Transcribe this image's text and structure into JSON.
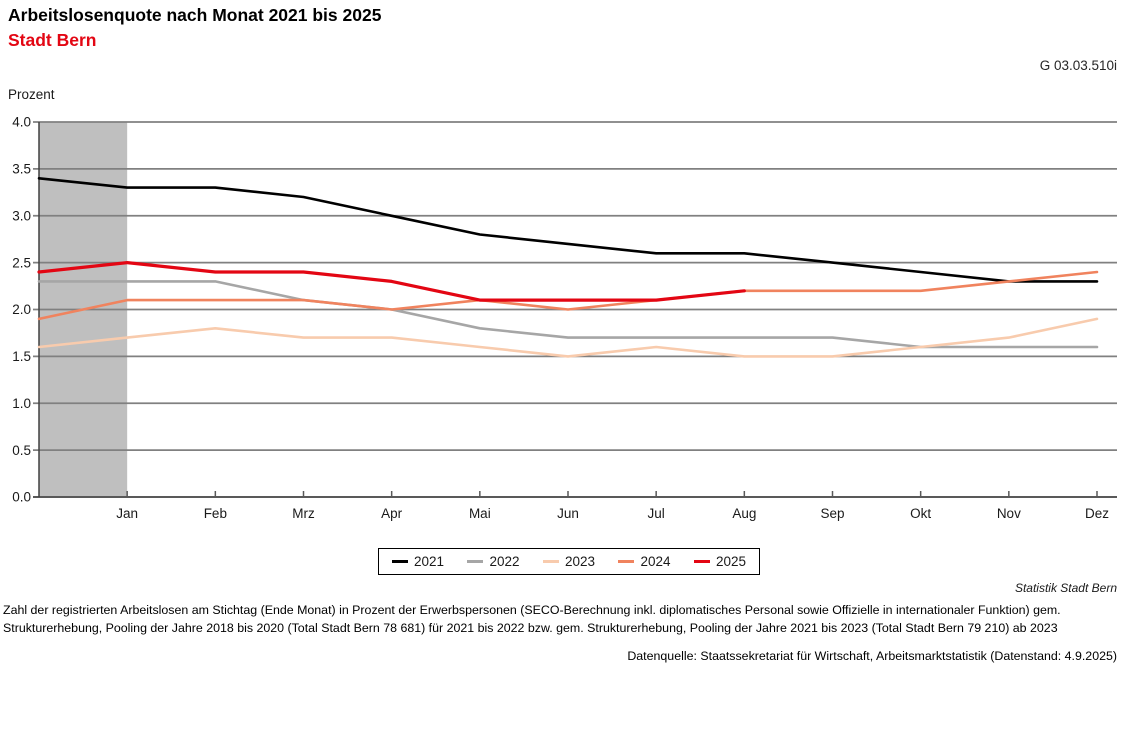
{
  "header": {
    "title": "Arbeitslosenquote nach Monat 2021 bis 2025",
    "subtitle": "Stadt Bern",
    "graphic_id": "G 03.03.510i"
  },
  "chart_data": {
    "type": "line",
    "title": "Arbeitslosenquote nach Monat 2021 bis 2025",
    "subtitle": "Stadt Bern",
    "ylabel": "Prozent",
    "xlabel": "",
    "ylim": [
      0.0,
      4.0
    ],
    "ytick_step": 0.5,
    "grid": true,
    "legend_position": "bottom",
    "x_tick_labels": [
      "Jan",
      "Feb",
      "Mrz",
      "Apr",
      "Mai",
      "Jun",
      "Jul",
      "Aug",
      "Sep",
      "Okt",
      "Nov",
      "Dez"
    ],
    "first_point_note": "Each series begins with the previous December value plotted on the y-axis before Jan",
    "highlight_band": {
      "color": "#BFBFBF",
      "from_month_index": 0,
      "to_month_index": 1
    },
    "series": [
      {
        "name": "2021",
        "color": "#000000",
        "values": [
          3.4,
          3.3,
          3.3,
          3.2,
          3.0,
          2.8,
          2.7,
          2.6,
          2.6,
          2.5,
          2.4,
          2.3,
          2.3
        ]
      },
      {
        "name": "2022",
        "color": "#A6A6A6",
        "values": [
          2.3,
          2.3,
          2.3,
          2.1,
          2.0,
          1.8,
          1.7,
          1.7,
          1.7,
          1.7,
          1.6,
          1.6,
          1.6
        ]
      },
      {
        "name": "2023",
        "color": "#F8CBAD",
        "values": [
          1.6,
          1.7,
          1.8,
          1.7,
          1.7,
          1.6,
          1.5,
          1.6,
          1.5,
          1.5,
          1.6,
          1.7,
          1.9
        ]
      },
      {
        "name": "2024",
        "color": "#F0835E",
        "values": [
          1.9,
          2.1,
          2.1,
          2.1,
          2.0,
          2.1,
          2.0,
          2.1,
          2.2,
          2.2,
          2.2,
          2.3,
          2.4
        ]
      },
      {
        "name": "2025",
        "color": "#E30613",
        "values": [
          2.4,
          2.5,
          2.4,
          2.4,
          2.3,
          2.1,
          2.1,
          2.1,
          2.2
        ]
      }
    ],
    "colors": {
      "gridline": "#808080",
      "x_axis": "#595959",
      "y_axis": "#404040",
      "band": "#BFBFBF"
    }
  },
  "footer": {
    "attribution": "Statistik Stadt Bern",
    "footnote_lines": [
      "Zahl der registrierten Arbeitslosen am Stichtag (Ende Monat) in Prozent der Erwerbspersonen (SECO-Berechnung inkl. diplomatisches Personal sowie Offizielle in internationaler Funktion) gem.",
      "Strukturerhebung, Pooling der Jahre 2018 bis 2020 (Total Stadt Bern 78 681) für 2021 bis 2022 bzw. gem. Strukturerhebung, Pooling der Jahre 2021 bis 2023 (Total Stadt Bern 79 210) ab 2023"
    ],
    "source": "Datenquelle: Staatssekretariat für Wirtschaft, Arbeitsmarktstatistik (Datenstand: 4.9.2025)"
  }
}
